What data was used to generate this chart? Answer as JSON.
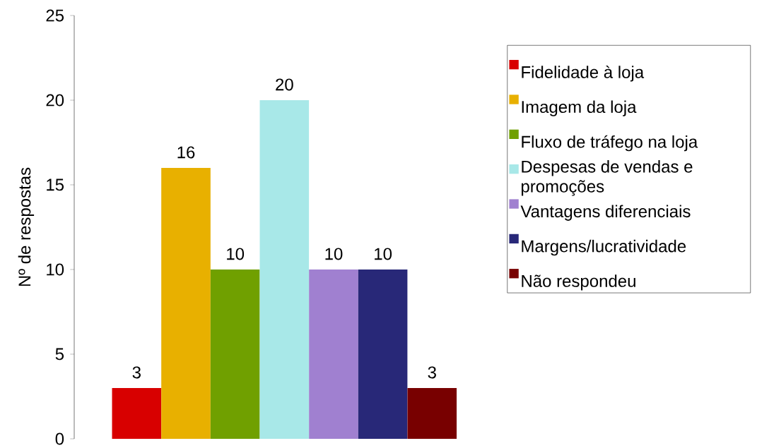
{
  "chart_data": {
    "type": "bar",
    "ylabel": "Nº de respostas",
    "categories": [
      null
    ],
    "series": [
      {
        "name": "Fidelidade à loja",
        "color": "#d80000",
        "values": [
          3
        ]
      },
      {
        "name": "Imagem da loja",
        "color": "#e8b000",
        "values": [
          16
        ]
      },
      {
        "name": "Fluxo de tráfego na loja",
        "color": "#70a000",
        "values": [
          10
        ]
      },
      {
        "name": "Despesas de vendas e promoções",
        "color": "#a8e8e8",
        "values": [
          20
        ]
      },
      {
        "name": "Vantagens diferenciais",
        "color": "#a080d0",
        "values": [
          10
        ]
      },
      {
        "name": "Margens/lucratividade",
        "color": "#282878",
        "values": [
          10
        ]
      },
      {
        "name": "Não respondeu",
        "color": "#780000",
        "values": [
          3
        ]
      }
    ],
    "ylim": [
      0,
      25
    ],
    "yticks": [
      0,
      5,
      10,
      15,
      20,
      25
    ],
    "data_labels": true,
    "legend": "right",
    "grid": false
  }
}
